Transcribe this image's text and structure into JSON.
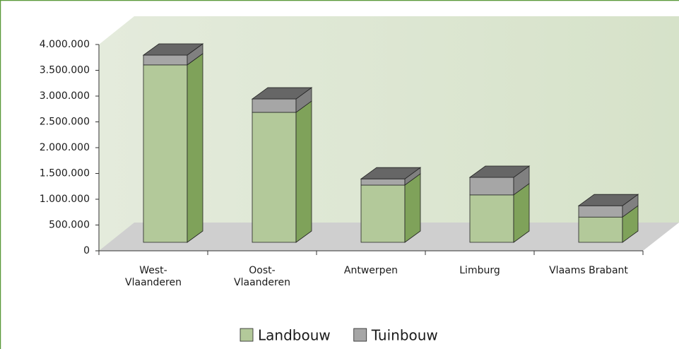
{
  "chart_data": {
    "type": "bar3d_stacked",
    "categories": [
      "West-\nVlaanderen",
      "Oost-\nVlaanderen",
      "Antwerpen",
      "Limburg",
      "Vlaams Brabant"
    ],
    "series": [
      {
        "name": "Landbouw",
        "color": "#b3c99a",
        "side_color": "#7fa25a",
        "values": [
          3440000,
          2520000,
          1110000,
          920000,
          490000
        ]
      },
      {
        "name": "Tuinbouw",
        "color": "#a6a6a6",
        "side_color": "#808080",
        "values": [
          190000,
          260000,
          120000,
          340000,
          220000
        ]
      }
    ],
    "ylim": [
      0,
      4000000
    ],
    "yticks": [
      0,
      {
        "value": 500000,
        "label": "500.000"
      },
      {
        "value": 1000000,
        "label": "1.000.000"
      },
      {
        "value": 1500000,
        "label": "1.500.000"
      },
      {
        "value": 2000000,
        "label": "2.000.000"
      },
      {
        "value": 2500000,
        "label": "2.500.000"
      },
      {
        "value": 3000000,
        "label": "3.000.000"
      },
      {
        "value": 3500000,
        "label": "3.500.000"
      },
      {
        "value": 4000000,
        "label": "4.000.000"
      }
    ],
    "legend": "bottom"
  }
}
